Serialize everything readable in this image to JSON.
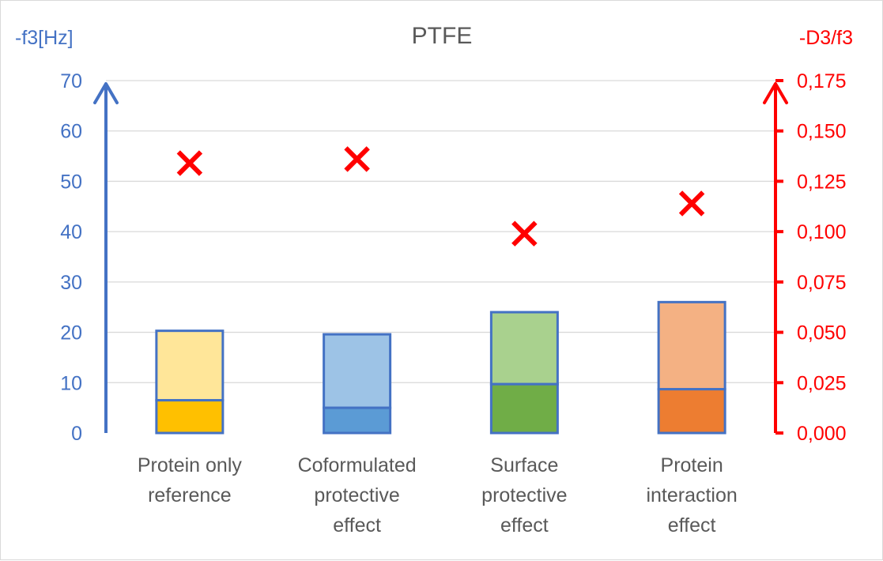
{
  "chart_data": {
    "type": "bar",
    "title": "PTFE",
    "ylabel_left": "-f3[Hz]",
    "ylabel_right": "-D3/f3",
    "ylim_left": [
      0,
      70
    ],
    "ylim_right": [
      0,
      0.175
    ],
    "ticks_left": [
      "0",
      "10",
      "20",
      "30",
      "40",
      "50",
      "60",
      "70"
    ],
    "ticks_right": [
      "0,000",
      "0,025",
      "0,050",
      "0,075",
      "0,100",
      "0,125",
      "0,150",
      "0,175"
    ],
    "categories": [
      [
        "Protein only",
        "reference"
      ],
      [
        "Coformulated",
        "protective",
        "effect"
      ],
      [
        "Surface",
        "protective",
        "effect"
      ],
      [
        "Protein",
        "interaction",
        "effect"
      ]
    ],
    "series": [
      {
        "name": "-f3 lower segment",
        "axis": "left",
        "values": [
          6.5,
          5,
          9.7,
          8.7
        ]
      },
      {
        "name": "-f3 total",
        "axis": "left",
        "values": [
          20.3,
          19.6,
          24,
          26
        ]
      },
      {
        "name": "-D3/f3",
        "axis": "right",
        "marker": "x",
        "values": [
          0.134,
          0.136,
          0.099,
          0.114
        ]
      }
    ],
    "colors": {
      "lower": [
        "#ffc000",
        "#5b9bd5",
        "#70ad47",
        "#ed7d31"
      ],
      "upper": [
        "#ffe699",
        "#9dc3e6",
        "#a9d18e",
        "#f4b183"
      ],
      "bar_outline": "#4472c4",
      "left_axis": "#4472c4",
      "right_axis": "#ff0000",
      "marker": "#ff0000",
      "gridline": "#d9d9d9"
    }
  }
}
